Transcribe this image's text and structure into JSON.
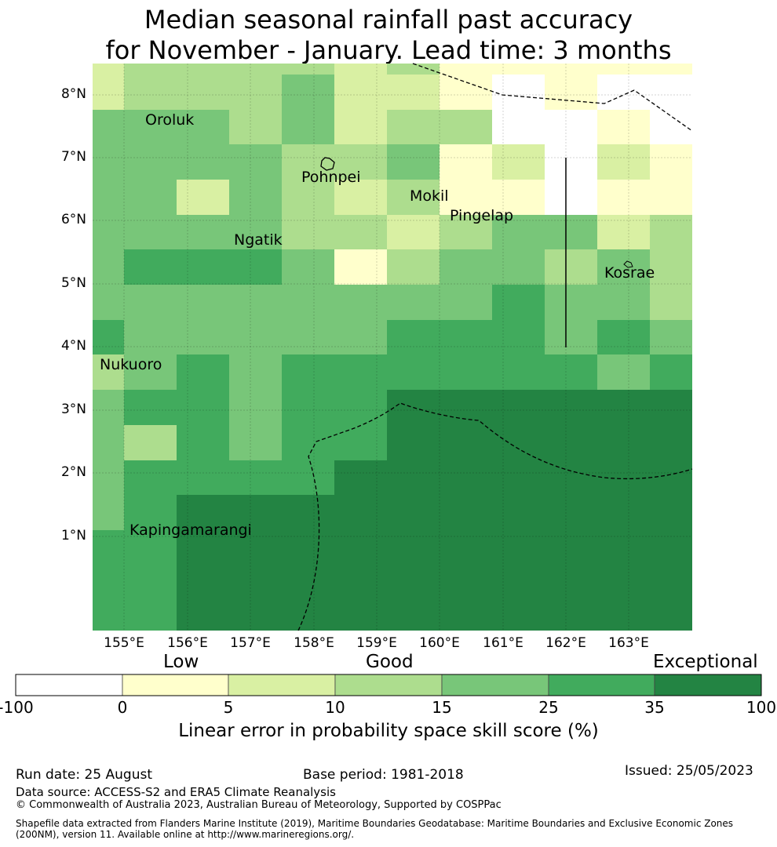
{
  "title": {
    "line1": "Median seasonal rainfall past accuracy",
    "line2": "for November - January. Lead time: 3 months"
  },
  "map": {
    "lat_labels": [
      "8°N",
      "7°N",
      "6°N",
      "5°N",
      "4°N",
      "3°N",
      "2°N",
      "1°N"
    ],
    "lon_labels": [
      "155°E",
      "156°E",
      "157°E",
      "158°E",
      "159°E",
      "160°E",
      "161°E",
      "162°E",
      "163°E"
    ],
    "places": [
      "Oroluk",
      "Pohnpei",
      "Mokil",
      "Pingelap",
      "Ngatik",
      "Kosrae",
      "Nukuoro",
      "Kapingamarangi"
    ]
  },
  "colorbar": {
    "category_labels": [
      "Low",
      "Good",
      "Exceptional"
    ],
    "ticks": [
      "-100",
      "0",
      "5",
      "10",
      "15",
      "25",
      "35",
      "100"
    ],
    "colors": [
      "#ffffff",
      "#ffffcc",
      "#d9f0a3",
      "#addd8e",
      "#78c679",
      "#41ab5d",
      "#238443"
    ],
    "label": "Linear error in probability space skill score (%)"
  },
  "footer": {
    "run_date": "Run date: 25 August",
    "base_period": "Base period: 1981-2018",
    "issued": "Issued: 25/05/2023",
    "data_source": "Data source: ACCESS-S2 and ERA5 Climate Reanalysis",
    "copyright": "© Commonwealth of Australia 2023, Australian Bureau of Meteorology, Supported by COSPPac",
    "shapefile1": "Shapefile data extracted from Flanders Marine Institute (2019), Maritime Boundaries Geodatabase: Maritime Boundaries and Exclusive Economic Zones",
    "shapefile2": "(200NM), version 11. Available online at http://www.marineregions.org/."
  }
}
